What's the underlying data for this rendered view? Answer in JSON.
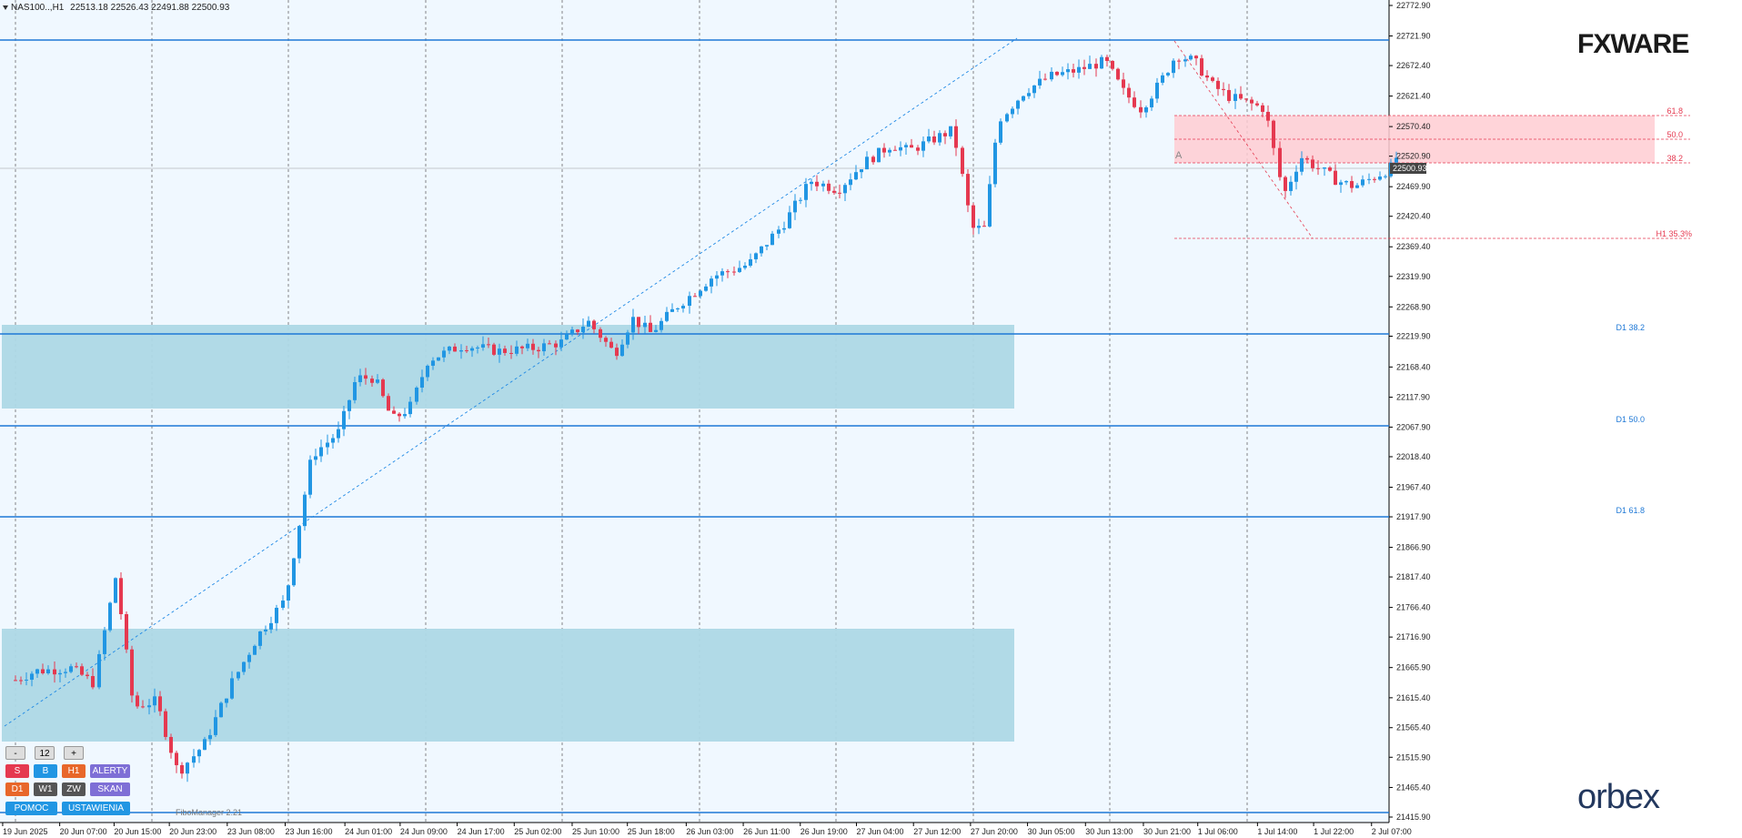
{
  "header": {
    "symbol": "NAS100..,H1",
    "ohlc": "22513.18 22526.43 22491.88 22500.93"
  },
  "price_axis": {
    "labels": [
      "22772.90",
      "22721.90",
      "22672.40",
      "22621.40",
      "22570.40",
      "22520.90",
      "22469.90",
      "22420.40",
      "22369.40",
      "22319.90",
      "22268.90",
      "22219.90",
      "22168.40",
      "22117.90",
      "22067.90",
      "22018.40",
      "21967.40",
      "21917.90",
      "21866.90",
      "21817.40",
      "21766.40",
      "21716.90",
      "21665.90",
      "21615.40",
      "21565.40",
      "21515.90",
      "21465.40",
      "21415.90"
    ],
    "current_price": "22500.93"
  },
  "time_axis": {
    "labels": [
      "19 Jun 2025",
      "20 Jun 07:00",
      "20 Jun 15:00",
      "20 Jun 23:00",
      "23 Jun 08:00",
      "23 Jun 16:00",
      "24 Jun 01:00",
      "24 Jun 09:00",
      "24 Jun 17:00",
      "25 Jun 02:00",
      "25 Jun 10:00",
      "25 Jun 18:00",
      "26 Jun 03:00",
      "26 Jun 11:00",
      "26 Jun 19:00",
      "27 Jun 04:00",
      "27 Jun 12:00",
      "27 Jun 20:00",
      "30 Jun 05:00",
      "30 Jun 13:00",
      "30 Jun 21:00",
      "1 Jul 06:00",
      "1 Jul 14:00",
      "1 Jul 22:00",
      "2 Jul 07:00"
    ]
  },
  "levels": {
    "d1_382": "D1 38.2",
    "d1_500": "D1 50.0",
    "d1_618": "D1 61.8",
    "fib_618": "61.8",
    "fib_500": "50.0",
    "fib_382": "38.2",
    "h1_label": "H1 35.3%",
    "fib_marker": "A"
  },
  "logos": {
    "fxware": "FXWARE",
    "orbex": "orbex"
  },
  "panel": {
    "minus": "-",
    "count": "12",
    "plus": "+",
    "s": "S",
    "b": "B",
    "h1": "H1",
    "alerty": "ALERTY",
    "d1": "D1",
    "w1": "W1",
    "zw": "ZW",
    "skan": "SKAN",
    "pomoc": "POMOC",
    "ustawienia": "USTAWIENIA"
  },
  "footer": {
    "fibomanager": "FiboManager 2.21"
  },
  "colors": {
    "background": "#f0f8ff",
    "bull": "#2196e3",
    "bear": "#e53950",
    "zone": "#add8e6",
    "fib_zone": "#ffcdd2",
    "level_line": "#1e78d6"
  }
}
